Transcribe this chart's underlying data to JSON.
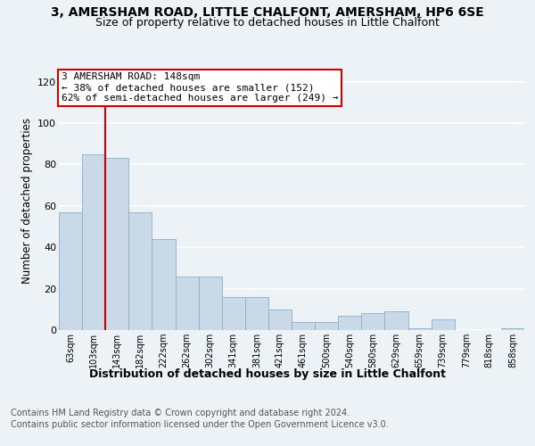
{
  "title": "3, AMERSHAM ROAD, LITTLE CHALFONT, AMERSHAM, HP6 6SE",
  "subtitle": "Size of property relative to detached houses in Little Chalfont",
  "xlabel": "Distribution of detached houses by size in Little Chalfont",
  "ylabel": "Number of detached properties",
  "footer_line1": "Contains HM Land Registry data © Crown copyright and database right 2024.",
  "footer_line2": "Contains public sector information licensed under the Open Government Licence v3.0.",
  "bar_labels": [
    "63sqm",
    "103sqm",
    "143sqm",
    "182sqm",
    "222sqm",
    "262sqm",
    "302sqm",
    "341sqm",
    "381sqm",
    "421sqm",
    "461sqm",
    "500sqm",
    "540sqm",
    "580sqm",
    "629sqm",
    "659sqm",
    "739sqm",
    "779sqm",
    "818sqm",
    "858sqm"
  ],
  "bar_values": [
    57,
    85,
    83,
    57,
    44,
    26,
    26,
    16,
    16,
    10,
    4,
    4,
    7,
    8,
    9,
    1,
    5,
    0,
    0,
    1
  ],
  "bar_color": "#c9d9e8",
  "bar_edgecolor": "#8aafc8",
  "highlight_bar_index": 1,
  "highlight_line_color": "#cc0000",
  "annotation_text": "3 AMERSHAM ROAD: 148sqm\n← 38% of detached houses are smaller (152)\n62% of semi-detached houses are larger (249) →",
  "annotation_box_edgecolor": "#cc0000",
  "annotation_box_facecolor": "#ffffff",
  "ylim": [
    0,
    125
  ],
  "yticks": [
    0,
    20,
    40,
    60,
    80,
    100,
    120
  ],
  "background_color": "#edf2f7",
  "grid_color": "#ffffff",
  "title_fontsize": 10,
  "subtitle_fontsize": 9,
  "ylabel_fontsize": 8.5,
  "xlabel_fontsize": 9,
  "footer_fontsize": 7,
  "annotation_fontsize": 8
}
